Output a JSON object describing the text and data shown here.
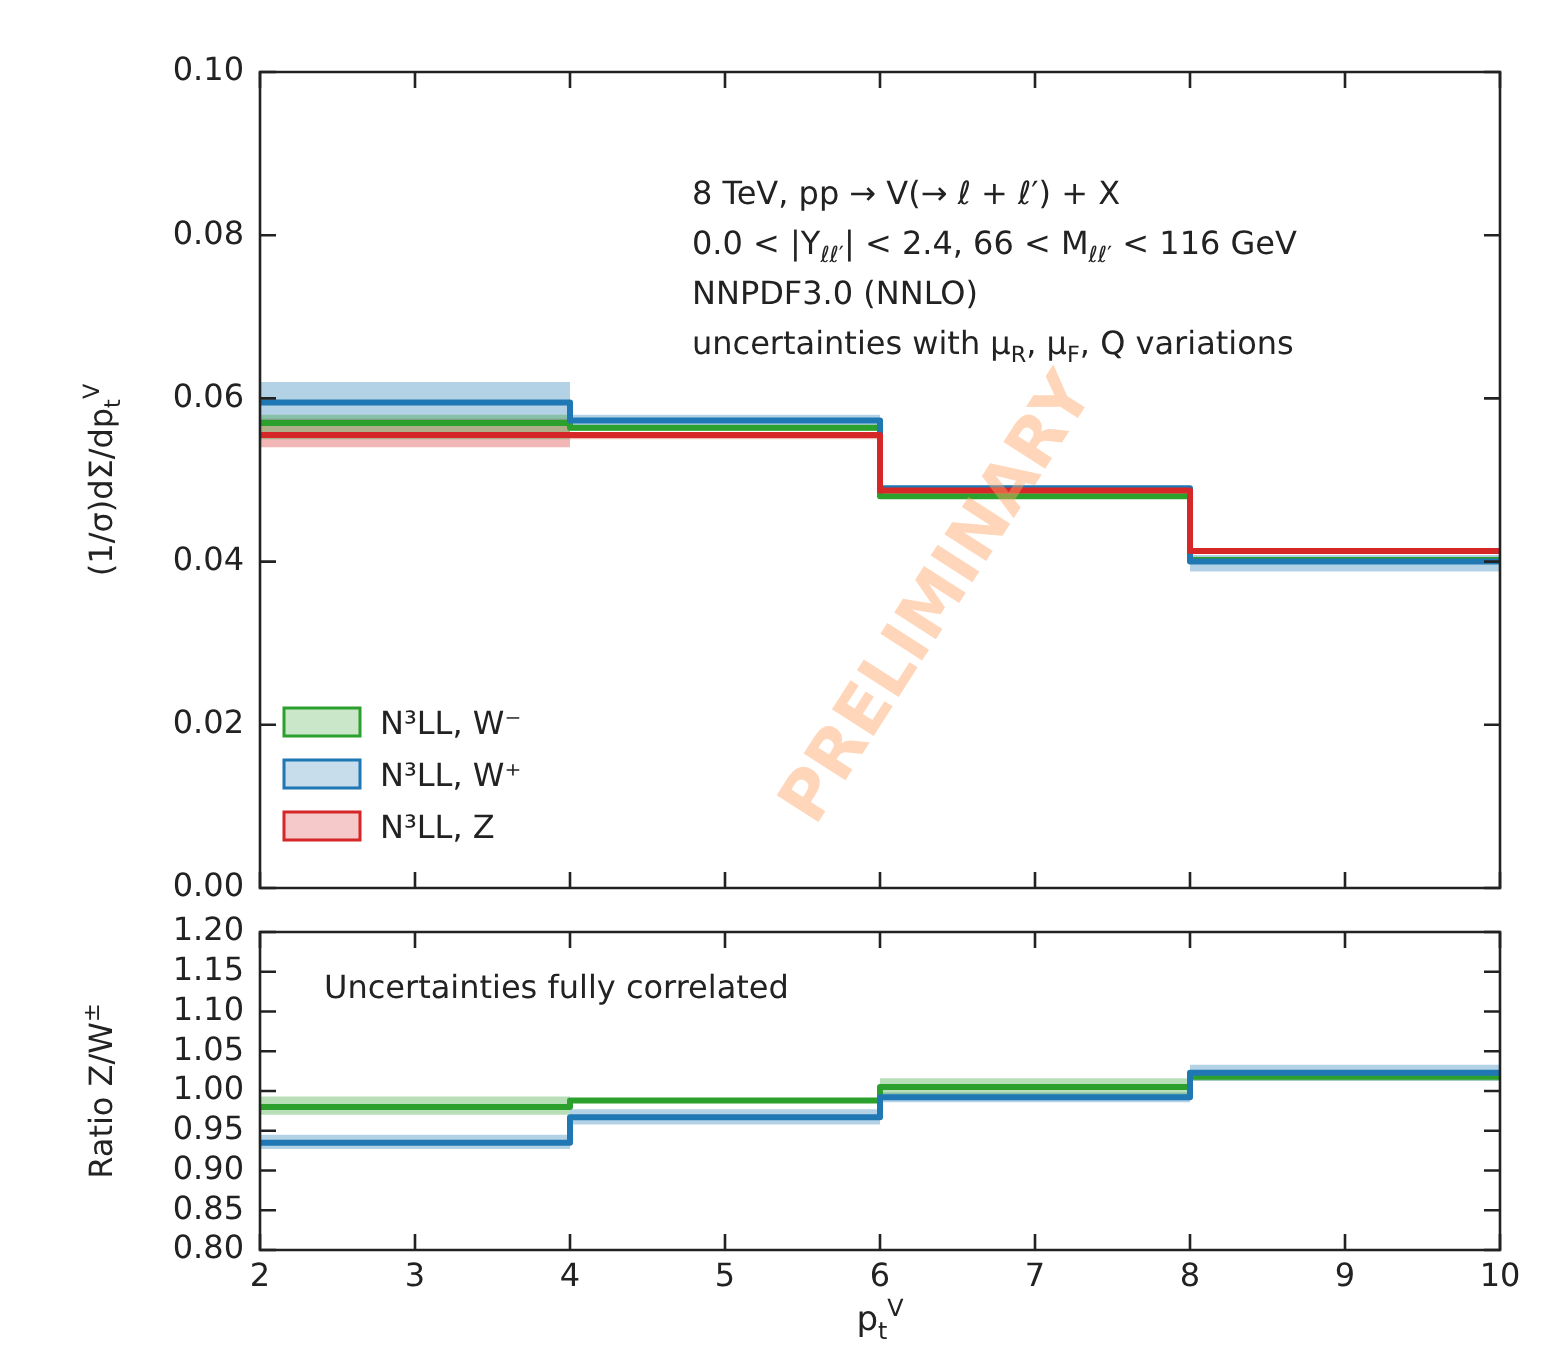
{
  "chart_data": [
    {
      "type": "step",
      "ylabel": "(1/σ)dΣ/dp$_{t}$$^{V}$",
      "x": [
        2,
        4,
        6,
        8,
        10
      ],
      "series": [
        {
          "name": "N³LL, W⁻",
          "color": "#2ca02c",
          "values": [
            0.057,
            0.0564,
            0.048,
            0.0402,
            0.0402
          ],
          "lower": [
            0.055,
            0.056,
            0.0477,
            0.0398,
            0.0398
          ],
          "upper": [
            0.058,
            0.0567,
            0.0483,
            0.0406,
            0.0406
          ]
        },
        {
          "name": "N³LL, W⁺",
          "color": "#1f77b4",
          "values": [
            0.0595,
            0.0573,
            0.049,
            0.04,
            0.04
          ],
          "lower": [
            0.057,
            0.0565,
            0.0485,
            0.0388,
            0.0388
          ],
          "upper": [
            0.062,
            0.058,
            0.0493,
            0.0408,
            0.0408
          ]
        },
        {
          "name": "N³LL, Z",
          "color": "#d62728",
          "values": [
            0.0555,
            0.0555,
            0.0487,
            0.0413,
            0.0413
          ],
          "lower": [
            0.054,
            0.055,
            0.0484,
            0.041,
            0.041
          ],
          "upper": [
            0.0575,
            0.0558,
            0.049,
            0.0416,
            0.0416
          ]
        }
      ],
      "xlim": [
        2,
        10
      ],
      "xticks": [
        2,
        3,
        4,
        5,
        6,
        7,
        8,
        9,
        10
      ],
      "ylim": [
        0,
        0.1
      ],
      "yticks": [
        {
          "value": 0,
          "label": "0.00"
        },
        {
          "value": 0.02,
          "label": "0.02"
        },
        {
          "value": 0.04,
          "label": "0.04"
        },
        {
          "value": 0.06,
          "label": "0.06"
        },
        {
          "value": 0.08,
          "label": "0.08"
        },
        {
          "value": 0.1,
          "label": "0.10"
        }
      ],
      "tick_labels": "y",
      "legend": "bottom left",
      "annotations": [
        "8 TeV, pp → V(→ ℓ + ℓ′) + X",
        "0.0 < |Y$_{ℓℓ′}$| < 2.4, 66 < M$_{ℓℓ′}$ < 116 GeV",
        "NNPDF3.0 (NNLO)",
        "uncertainties with μ$_{R}$, μ$_{F}$, Q variations",
        "PRELIMINARY"
      ]
    },
    {
      "type": "step",
      "xlabel": "p$_{t}$$^{V}$",
      "ylabel": "Ratio Z/W$^{±}$",
      "x": [
        2,
        4,
        6,
        8,
        10
      ],
      "series": [
        {
          "color": "#2ca02c",
          "values": [
            0.98,
            0.988,
            1.005,
            1.018,
            1.018
          ],
          "lower": [
            0.97,
            0.985,
            0.993,
            1.013,
            1.013
          ],
          "upper": [
            0.993,
            0.991,
            1.016,
            1.023,
            1.023
          ]
        },
        {
          "color": "#1f77b4",
          "values": [
            0.935,
            0.967,
            0.992,
            1.023,
            1.023
          ],
          "lower": [
            0.927,
            0.958,
            0.986,
            1.013,
            1.013
          ],
          "upper": [
            0.945,
            0.977,
            0.998,
            1.033,
            1.033
          ]
        }
      ],
      "xlim": [
        2,
        10
      ],
      "xticks": [
        2,
        3,
        4,
        5,
        6,
        7,
        8,
        9,
        10
      ],
      "ylim": [
        0.8,
        1.2
      ],
      "yticks": [
        {
          "value": 0.8,
          "label": "0.80"
        },
        {
          "value": 0.85,
          "label": "0.85"
        },
        {
          "value": 0.9,
          "label": "0.90"
        },
        {
          "value": 0.95,
          "label": "0.95"
        },
        {
          "value": 1,
          "label": "1.00"
        },
        {
          "value": 1.05,
          "label": "1.05"
        },
        {
          "value": 1.1,
          "label": "1.10"
        },
        {
          "value": 1.15,
          "label": "1.15"
        },
        {
          "value": 1.2,
          "label": "1.20"
        }
      ],
      "annotations": [
        "Uncertainties fully correlated"
      ]
    }
  ]
}
